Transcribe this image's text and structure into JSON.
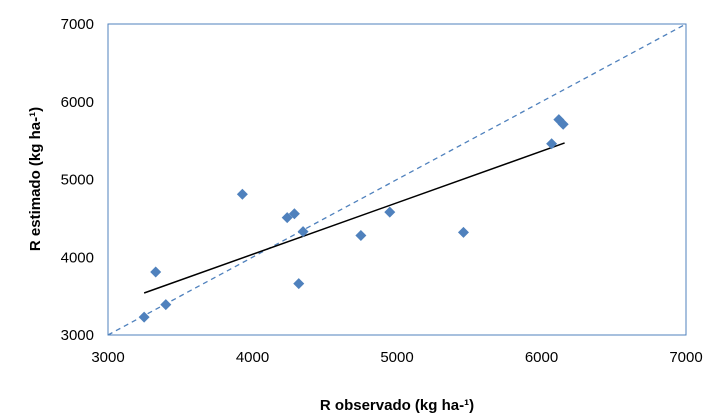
{
  "chart_data": {
    "type": "scatter",
    "xlabel": "R observado (kg ha-¹)",
    "ylabel": "R estimado (kg ha-¹)",
    "xlim": [
      3000,
      7000
    ],
    "ylim": [
      3000,
      7000
    ],
    "x_ticks": [
      "3000",
      "4000",
      "5000",
      "6000",
      "7000"
    ],
    "y_ticks": [
      "3000",
      "4000",
      "5000",
      "6000",
      "7000"
    ],
    "grid": false,
    "legend": "none",
    "marker": "diamond",
    "colors": {
      "points": "#4f81bd",
      "identity_line": "#4f81bd",
      "regression_line": "#000000",
      "plot_border": "#4f81bd"
    },
    "series": [
      {
        "points": [
          {
            "x": 3250,
            "y": 3230
          },
          {
            "x": 3330,
            "y": 3810
          },
          {
            "x": 3400,
            "y": 3390
          },
          {
            "x": 3930,
            "y": 4810
          },
          {
            "x": 4240,
            "y": 4510
          },
          {
            "x": 4290,
            "y": 4560
          },
          {
            "x": 4320,
            "y": 3660
          },
          {
            "x": 4350,
            "y": 4330
          },
          {
            "x": 4750,
            "y": 4280
          },
          {
            "x": 4950,
            "y": 4580
          },
          {
            "x": 5460,
            "y": 4320
          },
          {
            "x": 6070,
            "y": 5460
          },
          {
            "x": 6120,
            "y": 5770
          },
          {
            "x": 6150,
            "y": 5710
          }
        ]
      }
    ],
    "identity_line": {
      "x": [
        3000,
        7000
      ],
      "y": [
        3000,
        7000
      ],
      "style": "dashed"
    },
    "regression_line": {
      "x": [
        3250,
        6160
      ],
      "y": [
        3540,
        5470
      ],
      "style": "solid"
    }
  }
}
